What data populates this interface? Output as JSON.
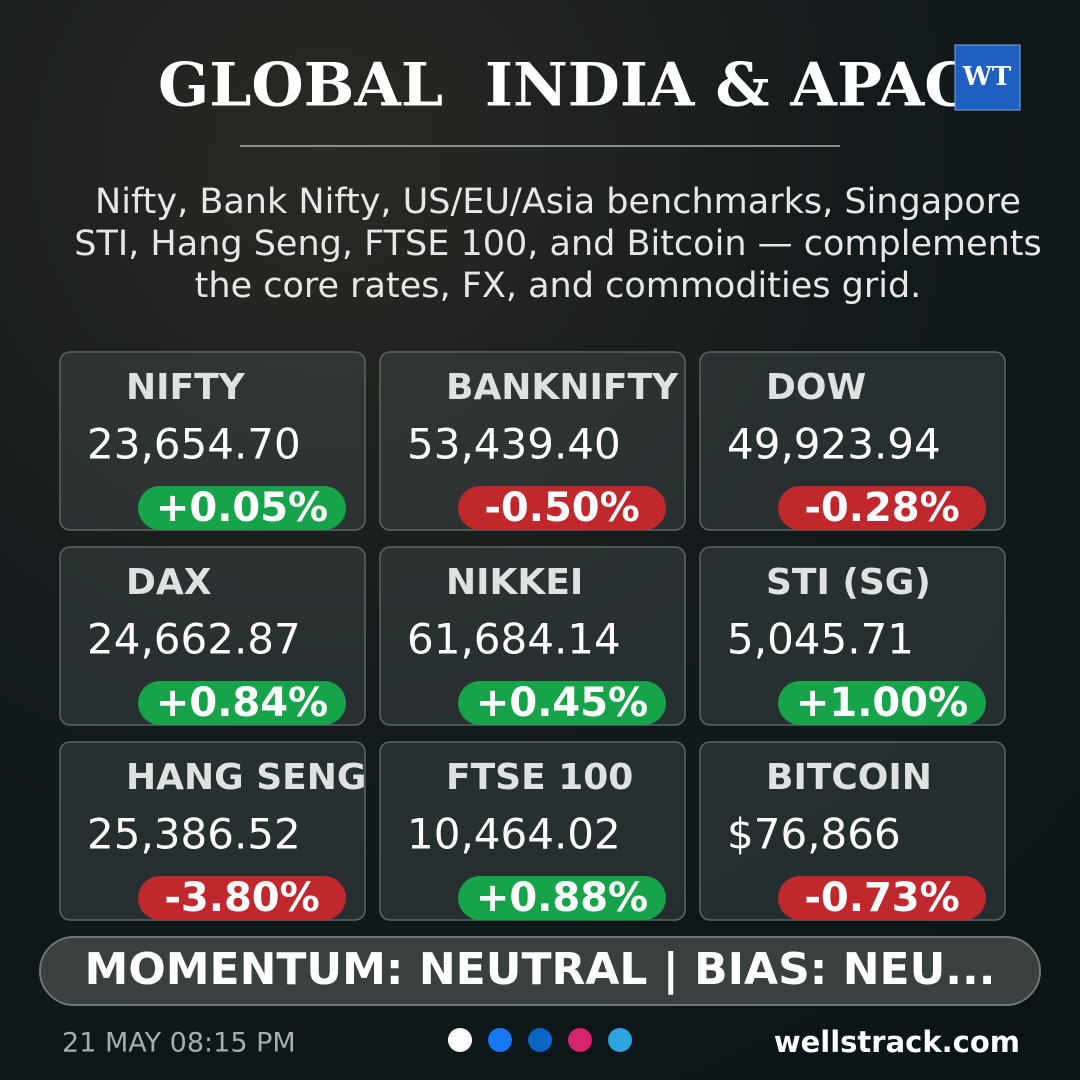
{
  "header": {
    "title": "GLOBAL  INDIA & APAC",
    "logo": "WT"
  },
  "subtitle_lines": [
    "Nifty, Bank Nifty, US/EU/Asia benchmarks, Singapore",
    "STI, Hang Seng, FTSE 100, and Bitcoin — complements",
    "the core rates, FX, and commodities grid."
  ],
  "cards": [
    {
      "name": "NIFTY",
      "value": "23,654.70",
      "change": "+0.05%",
      "badge_color": "#17a34a"
    },
    {
      "name": "BANKNIFTY",
      "value": "53,439.40",
      "change": "-0.50%",
      "badge_color": "#c0282d"
    },
    {
      "name": "DOW",
      "value": "49,923.94",
      "change": "-0.28%",
      "badge_color": "#c0282d"
    },
    {
      "name": "DAX",
      "value": "24,662.87",
      "change": "+0.84%",
      "badge_color": "#17a34a"
    },
    {
      "name": "NIKKEI",
      "value": "61,684.14",
      "change": "+0.45%",
      "badge_color": "#17a34a"
    },
    {
      "name": "STI (SG)",
      "value": "5,045.71",
      "change": "+1.00%",
      "badge_color": "#17a34a"
    },
    {
      "name": "HANG SENG",
      "value": "25,386.52",
      "change": "-3.80%",
      "badge_color": "#c0282d"
    },
    {
      "name": "FTSE 100",
      "value": "10,464.02",
      "change": "+0.88%",
      "badge_color": "#17a34a"
    },
    {
      "name": "BITCOIN",
      "value": "$76,866",
      "change": "-0.73%",
      "badge_color": "#c0282d"
    }
  ],
  "banner": "MOMENTUM: NEUTRAL | BIAS: NEU...",
  "footer": {
    "date": "21 MAY 08:15 PM",
    "website": "wellstrack.com"
  }
}
